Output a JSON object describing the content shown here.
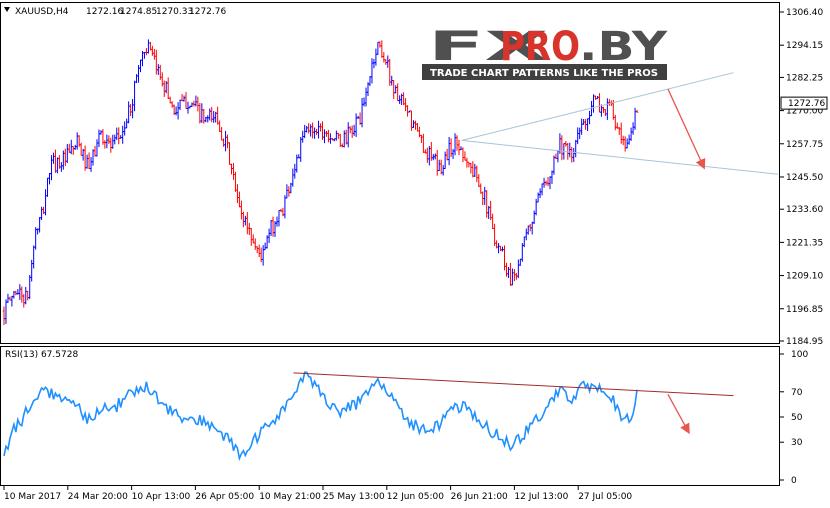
{
  "chart_data": [
    {
      "type": "candlestick",
      "symbol": "XAUUSD,H4",
      "ohlc": [
        "1272.16",
        "1274.85",
        "1270.33",
        "1272.76"
      ],
      "current_price_label": "1272.76",
      "current_price": 1272.76,
      "ylim": [
        1184.95,
        1306.4
      ],
      "yticks": [
        "1306.40",
        "1294.15",
        "1282.25",
        "1270.00",
        "1257.75",
        "1245.50",
        "1233.60",
        "1221.35",
        "1209.10",
        "1196.85",
        "1184.95"
      ],
      "xticks": [
        "10 Mar 2017",
        "24 Mar 20:00",
        "10 Apr 13:00",
        "26 Apr 05:00",
        "10 May 21:00",
        "25 May 13:00",
        "12 Jun 05:00",
        "26 Jun 21:00",
        "12 Jul 13:00",
        "27 Jul 05:00"
      ],
      "colors": {
        "up": "#0000ff",
        "down": "#ff0000",
        "trendline": "#a9c3d6",
        "arrow": "#e8564c"
      },
      "path_anchors": [
        [
          0,
          1196
        ],
        [
          0.015,
          1204
        ],
        [
          0.03,
          1200
        ],
        [
          0.04,
          1224
        ],
        [
          0.05,
          1232
        ],
        [
          0.06,
          1250
        ],
        [
          0.08,
          1252
        ],
        [
          0.095,
          1258
        ],
        [
          0.11,
          1248
        ],
        [
          0.125,
          1262
        ],
        [
          0.14,
          1256
        ],
        [
          0.155,
          1263
        ],
        [
          0.165,
          1272
        ],
        [
          0.175,
          1288
        ],
        [
          0.185,
          1294
        ],
        [
          0.195,
          1287
        ],
        [
          0.205,
          1282
        ],
        [
          0.22,
          1270
        ],
        [
          0.24,
          1274
        ],
        [
          0.26,
          1266
        ],
        [
          0.275,
          1268
        ],
        [
          0.29,
          1255
        ],
        [
          0.305,
          1233
        ],
        [
          0.315,
          1228
        ],
        [
          0.325,
          1220
        ],
        [
          0.335,
          1216
        ],
        [
          0.345,
          1226
        ],
        [
          0.36,
          1233
        ],
        [
          0.375,
          1248
        ],
        [
          0.39,
          1262
        ],
        [
          0.405,
          1264
        ],
        [
          0.42,
          1262
        ],
        [
          0.435,
          1258
        ],
        [
          0.45,
          1262
        ],
        [
          0.465,
          1270
        ],
        [
          0.475,
          1285
        ],
        [
          0.485,
          1295
        ],
        [
          0.495,
          1288
        ],
        [
          0.505,
          1278
        ],
        [
          0.52,
          1270
        ],
        [
          0.535,
          1262
        ],
        [
          0.545,
          1256
        ],
        [
          0.555,
          1252
        ],
        [
          0.565,
          1248
        ],
        [
          0.575,
          1255
        ],
        [
          0.585,
          1258
        ],
        [
          0.595,
          1255
        ],
        [
          0.605,
          1248
        ],
        [
          0.615,
          1245
        ],
        [
          0.625,
          1235
        ],
        [
          0.635,
          1224
        ],
        [
          0.645,
          1218
        ],
        [
          0.655,
          1208
        ],
        [
          0.665,
          1212
        ],
        [
          0.675,
          1222
        ],
        [
          0.69,
          1235
        ],
        [
          0.705,
          1246
        ],
        [
          0.72,
          1258
        ],
        [
          0.735,
          1252
        ],
        [
          0.745,
          1262
        ],
        [
          0.755,
          1268
        ],
        [
          0.765,
          1274
        ],
        [
          0.775,
          1270
        ],
        [
          0.785,
          1272
        ],
        [
          0.795,
          1262
        ],
        [
          0.805,
          1254
        ],
        [
          0.815,
          1265
        ],
        [
          0.82,
          1272
        ]
      ],
      "annotations": [
        {
          "type": "trendline",
          "from": [
            0.593,
            1259.0
          ],
          "to": [
            0.945,
            1284.0
          ]
        },
        {
          "type": "trendline",
          "from": [
            0.593,
            1259.0
          ],
          "to": [
            1.01,
            1246.5
          ]
        },
        {
          "type": "arrow",
          "from": [
            0.86,
            1278.0
          ],
          "to": [
            0.905,
            1250.0
          ]
        }
      ]
    },
    {
      "type": "line",
      "title": "RSI(13) 67.5728",
      "indicator": "RSI(13)",
      "value": 67.5728,
      "ylim": [
        0,
        100
      ],
      "yticks": [
        "100",
        "70",
        "50",
        "30",
        "0"
      ],
      "colors": {
        "line": "#1e90ff",
        "trendline": "#a52a2a",
        "arrow": "#e8564c"
      },
      "path_anchors": [
        [
          0,
          16
        ],
        [
          0.01,
          40
        ],
        [
          0.02,
          45
        ],
        [
          0.035,
          60
        ],
        [
          0.05,
          72
        ],
        [
          0.065,
          68
        ],
        [
          0.08,
          62
        ],
        [
          0.095,
          58
        ],
        [
          0.11,
          48
        ],
        [
          0.125,
          58
        ],
        [
          0.14,
          55
        ],
        [
          0.155,
          64
        ],
        [
          0.165,
          68
        ],
        [
          0.175,
          72
        ],
        [
          0.185,
          76
        ],
        [
          0.2,
          64
        ],
        [
          0.215,
          55
        ],
        [
          0.23,
          50
        ],
        [
          0.245,
          45
        ],
        [
          0.26,
          48
        ],
        [
          0.275,
          40
        ],
        [
          0.29,
          32
        ],
        [
          0.305,
          20
        ],
        [
          0.315,
          24
        ],
        [
          0.33,
          35
        ],
        [
          0.345,
          45
        ],
        [
          0.36,
          55
        ],
        [
          0.375,
          68
        ],
        [
          0.39,
          82
        ],
        [
          0.405,
          75
        ],
        [
          0.42,
          62
        ],
        [
          0.435,
          55
        ],
        [
          0.45,
          58
        ],
        [
          0.465,
          65
        ],
        [
          0.475,
          70
        ],
        [
          0.485,
          80
        ],
        [
          0.495,
          74
        ],
        [
          0.505,
          62
        ],
        [
          0.52,
          50
        ],
        [
          0.535,
          42
        ],
        [
          0.55,
          38
        ],
        [
          0.565,
          45
        ],
        [
          0.58,
          55
        ],
        [
          0.595,
          58
        ],
        [
          0.61,
          50
        ],
        [
          0.625,
          42
        ],
        [
          0.64,
          35
        ],
        [
          0.655,
          28
        ],
        [
          0.665,
          30
        ],
        [
          0.675,
          38
        ],
        [
          0.69,
          48
        ],
        [
          0.705,
          60
        ],
        [
          0.72,
          70
        ],
        [
          0.735,
          65
        ],
        [
          0.745,
          72
        ],
        [
          0.755,
          75
        ],
        [
          0.765,
          70
        ],
        [
          0.775,
          72
        ],
        [
          0.785,
          68
        ],
        [
          0.795,
          55
        ],
        [
          0.805,
          45
        ],
        [
          0.815,
          55
        ],
        [
          0.82,
          68
        ]
      ],
      "annotations": [
        {
          "type": "trendline",
          "from": [
            0.375,
            85.0
          ],
          "to": [
            0.945,
            67.0
          ]
        },
        {
          "type": "arrow",
          "from": [
            0.86,
            68.0
          ],
          "to": [
            0.885,
            40.0
          ]
        }
      ]
    }
  ],
  "watermark": {
    "brand": "FXPRO.BY",
    "tagline": "TRADE CHART PATTERNS LIKE THE PROS"
  }
}
